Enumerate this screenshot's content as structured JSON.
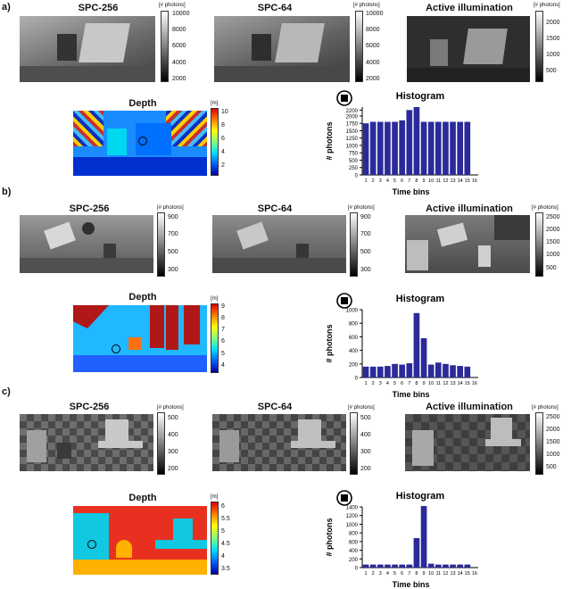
{
  "panels": [
    {
      "label": "a)",
      "titles": {
        "spc256": "SPC-256",
        "spc64": "SPC-64",
        "active": "Active illumination",
        "depth": "Depth",
        "histogram": "Histogram"
      },
      "photon_unit": "[# photons]",
      "depth_unit": "[m]",
      "spc256_ticks": [
        "10000",
        "8000",
        "6000",
        "4000",
        "2000"
      ],
      "spc64_ticks": [
        "10000",
        "8000",
        "6000",
        "4000",
        "2000"
      ],
      "active_ticks": [
        "2000",
        "1500",
        "1000",
        "500"
      ],
      "depth_ticks": [
        "10",
        "8",
        "6",
        "4",
        "2"
      ],
      "image_tones": {
        "spc256": "#8a8a8a",
        "spc64": "#7a7a7a",
        "active": "#3a3a3a"
      },
      "depth_colors": {
        "background": "#1a8cff",
        "foreground": "#0030d0",
        "noise": "#c83030"
      }
    },
    {
      "label": "b)",
      "titles": {
        "spc256": "SPC-256",
        "spc64": "SPC-64",
        "active": "Active illumination",
        "depth": "Depth",
        "histogram": "Histogram"
      },
      "photon_unit": "[# photons]",
      "depth_unit": "[m]",
      "spc256_ticks": [
        "900",
        "700",
        "500",
        "300"
      ],
      "spc64_ticks": [
        "900",
        "700",
        "500",
        "300"
      ],
      "active_ticks": [
        "2500",
        "2000",
        "1500",
        "1000",
        "500"
      ],
      "depth_ticks": [
        "9",
        "8",
        "7",
        "6",
        "5",
        "4"
      ],
      "image_tones": {
        "spc256": "#9a9a9a",
        "spc64": "#8e8e8e",
        "active": "#6a6a6a"
      },
      "depth_colors": {
        "background": "#20b8ff",
        "foreground": "#2060ff",
        "noise": "#b01818"
      }
    },
    {
      "label": "c)",
      "titles": {
        "spc256": "SPC-256",
        "spc64": "SPC-64",
        "active": "Active illumination",
        "depth": "Depth",
        "histogram": "Histogram"
      },
      "photon_unit": "[# photons]",
      "depth_unit": "[m]",
      "spc256_ticks": [
        "500",
        "400",
        "300",
        "200"
      ],
      "spc64_ticks": [
        "500",
        "400",
        "300",
        "200"
      ],
      "active_ticks": [
        "2500",
        "2000",
        "1500",
        "1000",
        "500"
      ],
      "depth_ticks": [
        "6",
        "5.5",
        "5",
        "4.5",
        "4",
        "3.5"
      ],
      "image_tones": {
        "spc256": "#5e5e5e",
        "spc64": "#5a5a5a",
        "active": "#505050"
      },
      "depth_colors": {
        "background": "#e83020",
        "foreground": "#10c8e0",
        "noise": "#ffb000"
      }
    }
  ],
  "chart_data": [
    {
      "type": "bar",
      "title": "Histogram",
      "xlabel": "Time bins",
      "ylabel": "# photons",
      "categories": [
        "1",
        "2",
        "3",
        "4",
        "5",
        "6",
        "7",
        "8",
        "9",
        "10",
        "11",
        "12",
        "13",
        "14",
        "15",
        "16"
      ],
      "values": [
        1750,
        1800,
        1800,
        1800,
        1800,
        1850,
        2200,
        2300,
        1800,
        1800,
        1800,
        1800,
        1800,
        1800,
        1800,
        0
      ],
      "yticks": [
        0,
        250,
        500,
        750,
        1000,
        1250,
        1500,
        1750,
        2000,
        2200
      ],
      "ylim": [
        0,
        2300
      ],
      "bar_color": "#2a2a9a"
    },
    {
      "type": "bar",
      "title": "Histogram",
      "xlabel": "Time bins",
      "ylabel": "# photons",
      "categories": [
        "1",
        "2",
        "3",
        "4",
        "5",
        "6",
        "7",
        "8",
        "9",
        "10",
        "11",
        "12",
        "13",
        "14",
        "15",
        "16"
      ],
      "values": [
        160,
        160,
        160,
        170,
        200,
        190,
        210,
        950,
        580,
        190,
        220,
        200,
        180,
        170,
        160,
        0
      ],
      "yticks": [
        0,
        200,
        400,
        600,
        800,
        1000
      ],
      "ylim": [
        0,
        1000
      ],
      "bar_color": "#2a2a9a"
    },
    {
      "type": "bar",
      "title": "Histogram",
      "xlabel": "Time bins",
      "ylabel": "# photons",
      "categories": [
        "1",
        "2",
        "3",
        "4",
        "5",
        "6",
        "7",
        "8",
        "9",
        "10",
        "11",
        "12",
        "13",
        "14",
        "15",
        "16"
      ],
      "values": [
        70,
        70,
        70,
        70,
        70,
        70,
        70,
        680,
        1420,
        90,
        70,
        70,
        70,
        70,
        70,
        0
      ],
      "yticks": [
        0,
        200,
        400,
        600,
        800,
        1000,
        1200,
        1400
      ],
      "ylim": [
        0,
        1400
      ],
      "bar_color": "#2a2a9a"
    }
  ]
}
